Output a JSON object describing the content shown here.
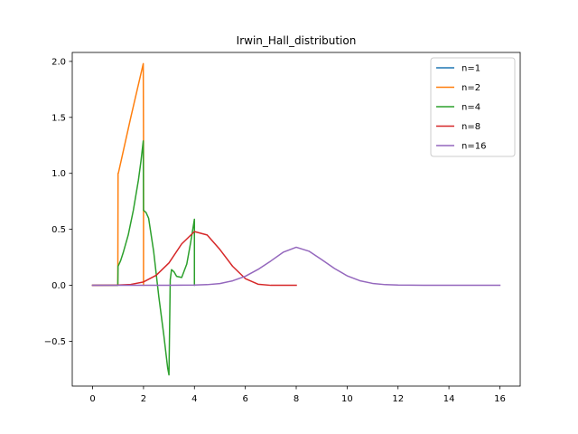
{
  "chart_data": {
    "type": "line",
    "title": "Irwin_Hall_distribution",
    "xlabel": "",
    "ylabel": "",
    "xlim": [
      -0.8,
      16.8
    ],
    "ylim": [
      -0.9,
      2.08
    ],
    "xticks": [
      0,
      2,
      4,
      6,
      8,
      10,
      12,
      14,
      16
    ],
    "yticks": [
      -0.5,
      0.0,
      0.5,
      1.0,
      1.5,
      2.0
    ],
    "xtick_labels": [
      "0",
      "2",
      "4",
      "6",
      "8",
      "10",
      "12",
      "14",
      "16"
    ],
    "ytick_labels": [
      "−0.5",
      "0.0",
      "0.5",
      "1.0",
      "1.5",
      "2.0"
    ],
    "grid": false,
    "legend_position": "top-right",
    "series": [
      {
        "name": "n=1",
        "color": "#1f77b4",
        "x": [],
        "y": []
      },
      {
        "name": "n=2",
        "color": "#ff7f0e",
        "x": [
          0,
          0.5,
          0.99,
          1.0,
          1.01,
          1.5,
          1.99,
          2.0,
          2.0
        ],
        "y": [
          0,
          0,
          0,
          1.0,
          1.0,
          1.5,
          1.98,
          1.3,
          0
        ]
      },
      {
        "name": "n=4",
        "color": "#2ca02c",
        "x": [
          0,
          0.5,
          0.99,
          1.0,
          1.1,
          1.2,
          1.4,
          1.6,
          1.8,
          1.9,
          1.99,
          2.0,
          2.1,
          2.2,
          2.4,
          2.6,
          2.8,
          2.95,
          3.0,
          3.05,
          3.1,
          3.2,
          3.3,
          3.5,
          3.7,
          3.85,
          4.0,
          4.0
        ],
        "y": [
          0,
          0,
          0,
          0.17,
          0.22,
          0.29,
          0.45,
          0.67,
          0.94,
          1.11,
          1.29,
          0.67,
          0.65,
          0.6,
          0.3,
          -0.1,
          -0.45,
          -0.74,
          -0.8,
          0.05,
          0.14,
          0.12,
          0.08,
          0.07,
          0.19,
          0.38,
          0.59,
          0
        ]
      },
      {
        "name": "n=8",
        "color": "#d62728",
        "x": [
          0,
          1,
          1.5,
          2,
          2.5,
          3,
          3.5,
          4,
          4.5,
          5,
          5.5,
          6,
          6.5,
          7,
          7.5,
          8
        ],
        "y": [
          0,
          0.002,
          0.008,
          0.03,
          0.09,
          0.2,
          0.37,
          0.48,
          0.45,
          0.32,
          0.17,
          0.06,
          0.01,
          0.0,
          0.0,
          0.0
        ]
      },
      {
        "name": "n=16",
        "color": "#9467bd",
        "x": [
          0,
          1,
          2,
          3,
          4,
          4.5,
          5,
          5.5,
          6,
          6.5,
          7,
          7.5,
          8,
          8.5,
          9,
          9.5,
          10,
          10.5,
          11,
          11.5,
          12,
          13,
          14,
          15,
          16
        ],
        "y": [
          0,
          0,
          0,
          0,
          0.002,
          0.006,
          0.016,
          0.04,
          0.081,
          0.142,
          0.217,
          0.297,
          0.34,
          0.305,
          0.23,
          0.151,
          0.085,
          0.041,
          0.017,
          0.006,
          0.002,
          0,
          0,
          0,
          0
        ]
      }
    ]
  }
}
